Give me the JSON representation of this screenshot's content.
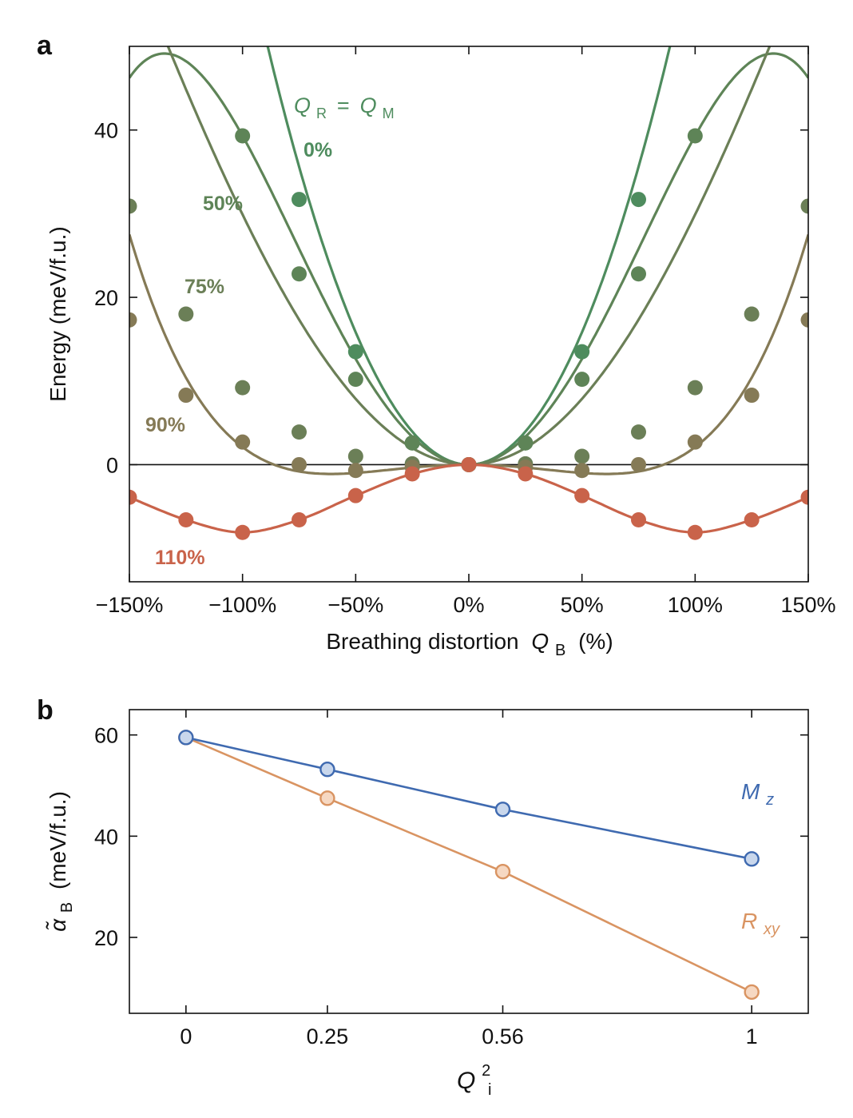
{
  "chart_data": [
    {
      "panel": "a",
      "type": "line",
      "xlabel": "Breathing distortion",
      "xlabel_symbol": "Q",
      "xlabel_sub": "B",
      "xlabel_unit": "(%)",
      "ylabel": "Energy (meV/f.u.)",
      "xlim": [
        -150,
        150
      ],
      "ylim": [
        -14,
        50
      ],
      "xticks": [
        -150,
        -100,
        -50,
        0,
        50,
        100,
        150
      ],
      "xticklabels": [
        "−150%",
        "−100%",
        "−50%",
        "0%",
        "50%",
        "100%",
        "150%"
      ],
      "yticks": [
        0,
        20,
        40
      ],
      "yticklabels": [
        "0",
        "20",
        "40"
      ],
      "zero_line": true,
      "header_label": {
        "q1": "Q",
        "sub1": "R",
        "eq": "=",
        "q2": "Q",
        "sub2": "M",
        "color": "#4E8C5E"
      },
      "series": [
        {
          "name": "0%",
          "color": "#4E8C5E",
          "alpha": 63.3,
          "beta": 0,
          "points_x": [
            -75,
            -50,
            -25,
            0,
            25,
            50,
            75
          ],
          "points_y": [
            31.7,
            13.5,
            2.6,
            0,
            2.6,
            13.5,
            31.7
          ]
        },
        {
          "name": "50%",
          "color": "#5E8457",
          "alpha": 54.3,
          "beta": -15,
          "points_x": [
            -100,
            -75,
            -50,
            -25,
            0,
            25,
            50,
            75,
            100
          ],
          "points_y": [
            39.3,
            22.8,
            10.2,
            2.6,
            0,
            2.6,
            10.2,
            22.8,
            39.3
          ]
        },
        {
          "name": "75%",
          "color": "#6B7F57",
          "alpha": 32.0,
          "beta": -2.1,
          "points_x": [
            -150,
            -125,
            -100,
            -75,
            -50,
            -25,
            0,
            25,
            50,
            75,
            100,
            125,
            150
          ],
          "points_y": [
            30.9,
            18.0,
            9.2,
            3.9,
            1.0,
            0.1,
            0,
            0.1,
            1.0,
            3.9,
            9.2,
            18.0,
            30.9
          ]
        },
        {
          "name": "90%",
          "color": "#857A56",
          "alpha": -6.0,
          "beta": 8.1,
          "points_x": [
            -150,
            -125,
            -100,
            -75,
            -50,
            -25,
            0,
            25,
            50,
            75,
            100,
            125,
            150
          ],
          "points_y": [
            17.3,
            8.3,
            2.7,
            0,
            -0.7,
            -0.3,
            0,
            -0.3,
            -0.7,
            0,
            2.7,
            8.3,
            17.3
          ]
        },
        {
          "name": "110%",
          "color": "#C9634A",
          "points_x": [
            -150,
            -125,
            -100,
            -75,
            -50,
            -25,
            0,
            25,
            50,
            75,
            100,
            125,
            150
          ],
          "points_y": [
            -3.9,
            -6.6,
            -8.1,
            -6.6,
            -3.7,
            -1.1,
            0,
            -1.1,
            -3.7,
            -6.6,
            -8.1,
            -6.6,
            -3.9
          ]
        }
      ]
    },
    {
      "panel": "b",
      "type": "line",
      "xlabel_symbol": "Q",
      "xlabel_sub": "i",
      "xlabel_sup": "2",
      "ylabel_symbol": "α̃",
      "ylabel_sub": "B",
      "ylabel_unit": "(meV/f.u.)",
      "xlim": [
        -0.1,
        1.1
      ],
      "ylim": [
        5,
        65
      ],
      "xticks": [
        0,
        0.25,
        0.56,
        1
      ],
      "xticklabels": [
        "0",
        "0.25",
        "0.56",
        "1"
      ],
      "yticks": [
        20,
        40,
        60
      ],
      "yticklabels": [
        "20",
        "40",
        "60"
      ],
      "series": [
        {
          "name": "M",
          "name_sub": "z",
          "color": "#3F6AB0",
          "fill": "#C9D7EC",
          "x": [
            0,
            0.25,
            0.56,
            1
          ],
          "y": [
            59.5,
            53.2,
            45.3,
            35.5
          ]
        },
        {
          "name": "R",
          "name_sub": "xy",
          "color": "#D99462",
          "fill": "#F6D8C2",
          "x": [
            0,
            0.25,
            0.56,
            1
          ],
          "y": [
            59.5,
            47.5,
            33.0,
            9.2
          ]
        }
      ]
    }
  ]
}
